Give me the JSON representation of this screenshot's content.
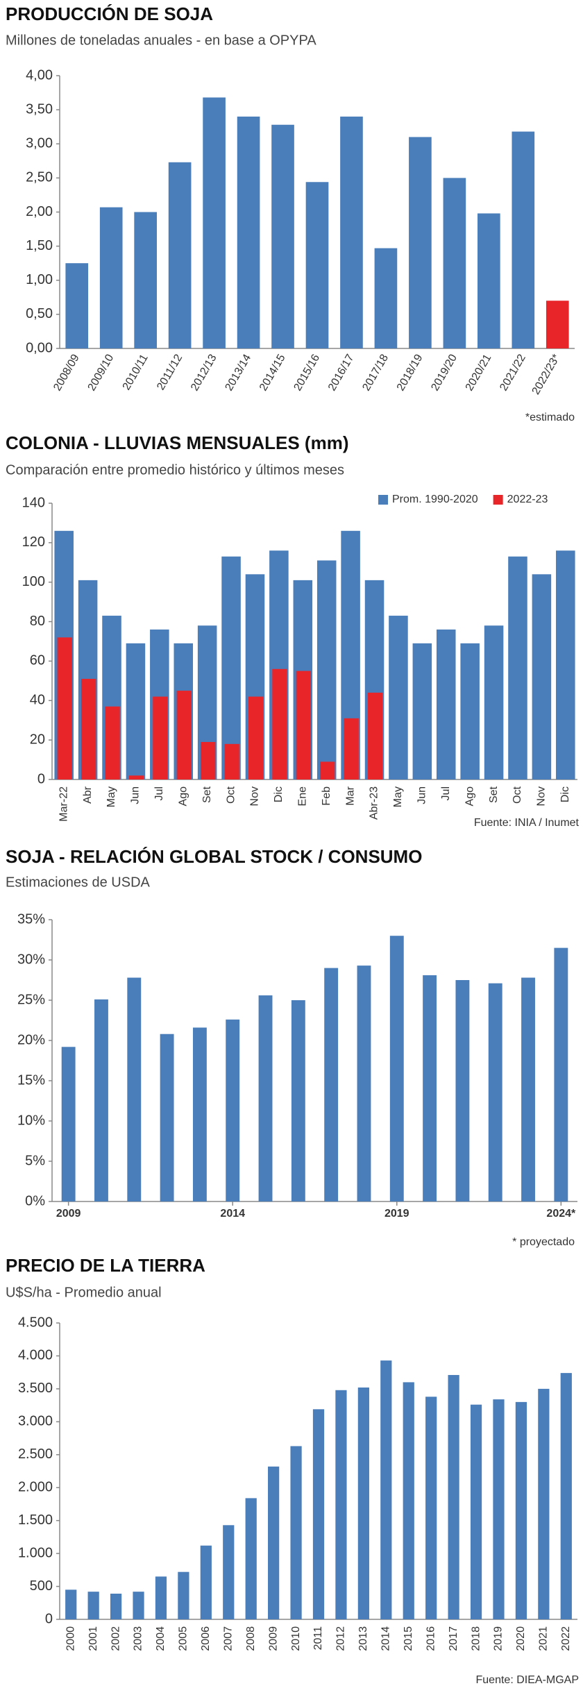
{
  "chart_data": [
    {
      "type": "bar",
      "title": "PRODUCCIÓN DE SOJA",
      "subtitle": "Millones de toneladas anuales - en base a OPYPA",
      "categories": [
        "2008/09",
        "2009/10",
        "2010/11",
        "2011/12",
        "2012/13",
        "2013/14",
        "2014/15",
        "2015/16",
        "2016/17",
        "2017/18",
        "2018/19",
        "2019/20",
        "2020/21",
        "2021/22",
        "2022/23*"
      ],
      "values": [
        1.25,
        2.07,
        2.0,
        2.73,
        3.68,
        3.4,
        3.28,
        2.44,
        3.4,
        1.47,
        3.1,
        2.5,
        1.98,
        3.18,
        0.7
      ],
      "colors": [
        "#4a7ebb",
        "#4a7ebb",
        "#4a7ebb",
        "#4a7ebb",
        "#4a7ebb",
        "#4a7ebb",
        "#4a7ebb",
        "#4a7ebb",
        "#4a7ebb",
        "#4a7ebb",
        "#4a7ebb",
        "#4a7ebb",
        "#4a7ebb",
        "#4a7ebb",
        "#e8262a"
      ],
      "ylim": [
        0,
        4
      ],
      "yticks": [
        {
          "value": 0,
          "label": "0,00"
        },
        {
          "value": 0.5,
          "label": "0,50"
        },
        {
          "value": 1,
          "label": "1,00"
        },
        {
          "value": 1.5,
          "label": "1,50"
        },
        {
          "value": 2,
          "label": "2,00"
        },
        {
          "value": 2.5,
          "label": "2,50"
        },
        {
          "value": 3,
          "label": "3,00"
        },
        {
          "value": 3.5,
          "label": "3,50"
        },
        {
          "value": 4,
          "label": "4,00"
        }
      ],
      "grid": false,
      "note": "*estimado"
    },
    {
      "type": "bar",
      "title": "COLONIA - LLUVIAS MENSUALES (mm)",
      "subtitle": "Comparación entre promedio histórico y últimos meses",
      "categories": [
        "Mar-22",
        "Abr",
        "May",
        "Jun",
        "Jul",
        "Ago",
        "Set",
        "Oct",
        "Nov",
        "Dic",
        "Ene",
        "Feb",
        "Mar",
        "Abr-23",
        "May",
        "Jun",
        "Jul",
        "Ago",
        "Set",
        "Oct",
        "Nov",
        "Dic"
      ],
      "series": [
        {
          "name": "Prom. 1990-2020",
          "color": "#4a7ebb",
          "values": [
            126,
            101,
            83,
            69,
            76,
            69,
            78,
            113,
            104,
            116,
            101,
            111,
            126,
            101,
            83,
            69,
            76,
            69,
            78,
            113,
            104,
            116
          ]
        },
        {
          "name": "2022-23",
          "color": "#e8262a",
          "values": [
            72,
            51,
            37,
            2,
            42,
            45,
            19,
            18,
            42,
            56,
            55,
            9,
            31,
            44,
            null,
            null,
            null,
            null,
            null,
            null,
            null,
            null
          ]
        }
      ],
      "ylim": [
        0,
        140
      ],
      "yticks": [
        0,
        20,
        40,
        60,
        80,
        100,
        120,
        140
      ],
      "grid": false,
      "legend": "top-right",
      "source": "Fuente: INIA / Inumet"
    },
    {
      "type": "bar",
      "title": "SOJA - RELACIÓN GLOBAL STOCK / CONSUMO",
      "subtitle": "Estimaciones de USDA",
      "categories": [
        "2009",
        null,
        null,
        null,
        null,
        "2014",
        null,
        null,
        null,
        null,
        "2019",
        null,
        null,
        null,
        null,
        "2024*"
      ],
      "values": [
        19.2,
        25.1,
        27.8,
        20.8,
        21.6,
        22.6,
        25.6,
        25.0,
        29.0,
        29.3,
        33.0,
        28.1,
        27.5,
        27.1,
        27.8,
        31.5
      ],
      "color": "#4a7ebb",
      "ylim": [
        0,
        35
      ],
      "yticks": [
        {
          "value": 0,
          "label": "0%"
        },
        {
          "value": 5,
          "label": "5%"
        },
        {
          "value": 10,
          "label": "10%"
        },
        {
          "value": 15,
          "label": "15%"
        },
        {
          "value": 20,
          "label": "20%"
        },
        {
          "value": 25,
          "label": "25%"
        },
        {
          "value": 30,
          "label": "30%"
        },
        {
          "value": 35,
          "label": "35%"
        }
      ],
      "grid": false,
      "note": "* proyectado"
    },
    {
      "type": "bar",
      "title": "PRECIO DE LA TIERRA",
      "subtitle": "U$S/ha - Promedio anual",
      "categories": [
        "2000",
        "2001",
        "2002",
        "2003",
        "2004",
        "2005",
        "2006",
        "2007",
        "2008",
        "2009",
        "2010",
        "2011",
        "2012",
        "2013",
        "2014",
        "2015",
        "2016",
        "2017",
        "2018",
        "2019",
        "2020",
        "2021",
        "2022"
      ],
      "values": [
        450,
        420,
        390,
        420,
        650,
        720,
        1120,
        1430,
        1840,
        2320,
        2630,
        3190,
        3480,
        3520,
        3930,
        3600,
        3380,
        3710,
        3260,
        3340,
        3300,
        3500,
        3740
      ],
      "color": "#4a7ebb",
      "ylim": [
        0,
        4500
      ],
      "yticks": [
        0,
        500,
        {
          "value": 1000,
          "label": "1.000"
        },
        {
          "value": 1500,
          "label": "1.500"
        },
        {
          "value": 2000,
          "label": "2.000"
        },
        {
          "value": 2500,
          "label": "2.500"
        },
        {
          "value": 3000,
          "label": "3.000"
        },
        {
          "value": 3500,
          "label": "3.500"
        },
        {
          "value": 4000,
          "label": "4.000"
        },
        {
          "value": 4500,
          "label": "4.500"
        }
      ],
      "grid": false,
      "source": "Fuente: DIEA-MGAP"
    }
  ]
}
